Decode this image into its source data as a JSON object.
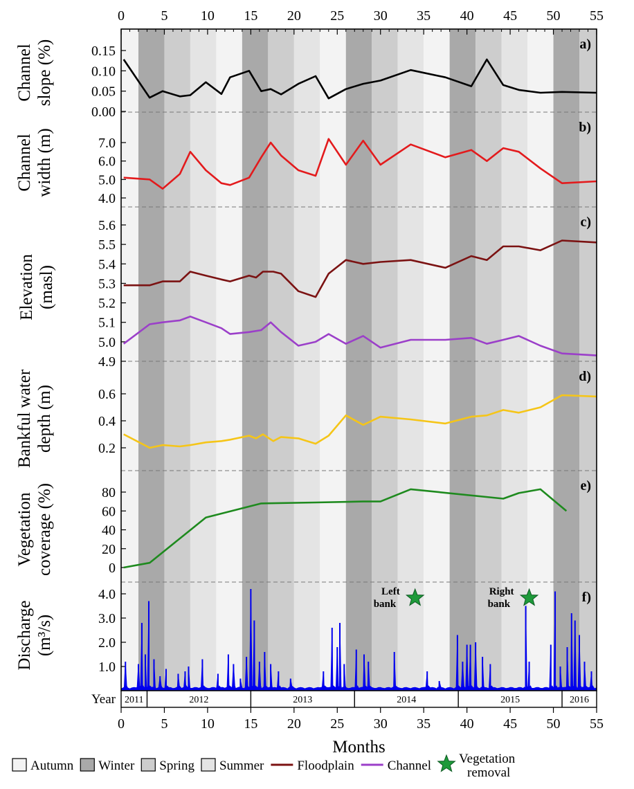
{
  "colors": {
    "autumn": "#f3f3f3",
    "winter": "#a9a9a9",
    "spring": "#cdcdcd",
    "summer": "#e4e4e4",
    "slope": "#000000",
    "width": "#e31a1c",
    "floodplain": "#7b1212",
    "channel": "#9b3fc9",
    "depth": "#f5c518",
    "vegetation": "#1e8a1e",
    "discharge": "#0000ee",
    "star": "#1e9a3a"
  },
  "icons": {
    "vegetation_removal": "star-icon"
  },
  "months_axis": {
    "label": "Months",
    "ticks": [
      "0",
      "5",
      "10",
      "15",
      "20",
      "25",
      "30",
      "35",
      "40",
      "45",
      "50",
      "55"
    ],
    "range": [
      0,
      55
    ]
  },
  "year_axis": {
    "title": "Year",
    "years": [
      {
        "label": "2011",
        "start": 0,
        "end": 3
      },
      {
        "label": "2012",
        "start": 3,
        "end": 15
      },
      {
        "label": "2013",
        "start": 15,
        "end": 27
      },
      {
        "label": "2014",
        "start": 27,
        "end": 39
      },
      {
        "label": "2015",
        "start": 39,
        "end": 51
      },
      {
        "label": "2016",
        "start": 51,
        "end": 55
      }
    ]
  },
  "seasons": [
    {
      "season": "autumn",
      "start": 0,
      "end": 2
    },
    {
      "season": "winter",
      "start": 2,
      "end": 5
    },
    {
      "season": "spring",
      "start": 5,
      "end": 8
    },
    {
      "season": "summer",
      "start": 8,
      "end": 11
    },
    {
      "season": "autumn",
      "start": 11,
      "end": 14
    },
    {
      "season": "winter",
      "start": 14,
      "end": 17
    },
    {
      "season": "spring",
      "start": 17,
      "end": 20
    },
    {
      "season": "summer",
      "start": 20,
      "end": 23
    },
    {
      "season": "autumn",
      "start": 23,
      "end": 26
    },
    {
      "season": "winter",
      "start": 26,
      "end": 29
    },
    {
      "season": "spring",
      "start": 29,
      "end": 32
    },
    {
      "season": "summer",
      "start": 32,
      "end": 35
    },
    {
      "season": "autumn",
      "start": 35,
      "end": 38
    },
    {
      "season": "winter",
      "start": 38,
      "end": 41
    },
    {
      "season": "spring",
      "start": 41,
      "end": 44
    },
    {
      "season": "summer",
      "start": 44,
      "end": 47
    },
    {
      "season": "autumn",
      "start": 47,
      "end": 50
    },
    {
      "season": "winter",
      "start": 50,
      "end": 53
    },
    {
      "season": "spring",
      "start": 53,
      "end": 55
    }
  ],
  "legend": {
    "items": [
      {
        "key": "autumn",
        "label": "Autumn",
        "kind": "box"
      },
      {
        "key": "winter",
        "label": "Winter",
        "kind": "box"
      },
      {
        "key": "spring",
        "label": "Spring",
        "kind": "box"
      },
      {
        "key": "summer",
        "label": "Summer",
        "kind": "box"
      },
      {
        "key": "floodplain",
        "label": "Floodplain",
        "kind": "line"
      },
      {
        "key": "channel",
        "label": "Channel",
        "kind": "line"
      },
      {
        "key": "star",
        "label": "Vegetation removal",
        "kind": "star"
      }
    ]
  },
  "annotations": [
    {
      "label": "Left bank",
      "month": 34
    },
    {
      "label": "Right bank",
      "month": 47.2
    }
  ],
  "chart_data": [
    {
      "type": "line",
      "panel": "a)",
      "ylabel": "Channel slope (%)",
      "yticks": [
        "0.00",
        "0.05",
        "0.10",
        "0.15"
      ],
      "ylim": [
        0,
        0.18
      ],
      "series": [
        {
          "color_key": "slope",
          "x": [
            0.3,
            3.3,
            4.8,
            6.8,
            8.0,
            9.8,
            11.6,
            12.6,
            14.8,
            16.2,
            17.3,
            18.5,
            20.5,
            22.5,
            24.0,
            26.0,
            28.0,
            30.0,
            33.5,
            37.5,
            40.5,
            42.3,
            44.2,
            46.0,
            48.5,
            51.0,
            55.0
          ],
          "y": [
            0.128,
            0.034,
            0.05,
            0.037,
            0.04,
            0.072,
            0.043,
            0.084,
            0.1,
            0.05,
            0.055,
            0.042,
            0.068,
            0.087,
            0.032,
            0.055,
            0.068,
            0.076,
            0.102,
            0.084,
            0.062,
            0.128,
            0.065,
            0.053,
            0.046,
            0.048,
            0.046
          ]
        }
      ]
    },
    {
      "type": "line",
      "panel": "b)",
      "ylabel": "Channel width (m)",
      "yticks": [
        "4.0",
        "5.0",
        "6.0",
        "7.0"
      ],
      "ylim": [
        3.5,
        7.5
      ],
      "series": [
        {
          "color_key": "width",
          "x": [
            0.3,
            3.3,
            4.8,
            6.8,
            8.0,
            9.8,
            11.6,
            12.6,
            14.8,
            16.2,
            17.3,
            18.5,
            20.5,
            22.5,
            24.0,
            26.0,
            28.0,
            30.0,
            33.5,
            37.5,
            40.5,
            42.3,
            44.2,
            46.0,
            48.5,
            51.0,
            55.0
          ],
          "y": [
            5.1,
            5.0,
            4.5,
            5.3,
            6.5,
            5.5,
            4.8,
            4.7,
            5.1,
            6.2,
            7.0,
            6.3,
            5.5,
            5.2,
            7.2,
            5.8,
            7.1,
            5.8,
            6.9,
            6.2,
            6.6,
            6.0,
            6.7,
            6.5,
            5.6,
            4.8,
            4.9
          ]
        }
      ]
    },
    {
      "type": "line",
      "panel": "c)",
      "ylabel": "Elevation (masl)",
      "yticks": [
        "4.9",
        "5.0",
        "5.1",
        "5.2",
        "5.3",
        "5.4",
        "5.5",
        "5.6"
      ],
      "ylim": [
        4.9,
        5.6
      ],
      "series": [
        {
          "name": "Floodplain",
          "color_key": "floodplain",
          "x": [
            0.3,
            3.3,
            4.8,
            6.8,
            8.0,
            9.8,
            11.6,
            12.6,
            14.8,
            15.6,
            16.4,
            17.6,
            18.5,
            20.5,
            22.5,
            24.0,
            26.0,
            28.0,
            30.0,
            33.5,
            37.5,
            40.5,
            42.3,
            44.2,
            46.0,
            48.5,
            51.0,
            55.0
          ],
          "y": [
            5.29,
            5.29,
            5.31,
            5.31,
            5.36,
            5.34,
            5.32,
            5.31,
            5.34,
            5.33,
            5.36,
            5.36,
            5.35,
            5.26,
            5.23,
            5.35,
            5.42,
            5.4,
            5.41,
            5.42,
            5.38,
            5.44,
            5.42,
            5.49,
            5.49,
            5.47,
            5.52,
            5.51
          ]
        },
        {
          "name": "Channel",
          "color_key": "channel",
          "x": [
            0.3,
            3.3,
            4.8,
            6.8,
            8.0,
            9.8,
            11.6,
            12.6,
            14.8,
            16.2,
            17.3,
            18.5,
            20.5,
            22.5,
            24.0,
            26.0,
            28.0,
            30.0,
            33.5,
            37.5,
            40.5,
            42.3,
            44.2,
            46.0,
            48.5,
            51.0,
            55.0
          ],
          "y": [
            4.99,
            5.09,
            5.1,
            5.11,
            5.13,
            5.1,
            5.07,
            5.04,
            5.05,
            5.06,
            5.1,
            5.05,
            4.98,
            5.0,
            5.04,
            4.99,
            5.03,
            4.97,
            5.01,
            5.01,
            5.02,
            4.99,
            5.01,
            5.03,
            4.98,
            4.94,
            4.93
          ]
        }
      ]
    },
    {
      "type": "line",
      "panel": "d)",
      "ylabel": "Bankful water depth (m)",
      "yticks": [
        "0.2",
        "0.4",
        "0.6"
      ],
      "ylim": [
        0.1,
        0.7
      ],
      "series": [
        {
          "color_key": "depth",
          "x": [
            0.3,
            3.3,
            4.8,
            6.8,
            8.0,
            9.8,
            11.6,
            12.6,
            14.8,
            15.6,
            16.4,
            17.6,
            18.5,
            20.5,
            22.5,
            24.0,
            26.0,
            28.0,
            30.0,
            33.5,
            37.5,
            40.5,
            42.3,
            44.2,
            46.0,
            48.5,
            51.0,
            55.0
          ],
          "y": [
            0.3,
            0.2,
            0.22,
            0.21,
            0.22,
            0.24,
            0.25,
            0.26,
            0.29,
            0.27,
            0.3,
            0.25,
            0.28,
            0.27,
            0.23,
            0.29,
            0.44,
            0.37,
            0.43,
            0.41,
            0.38,
            0.43,
            0.44,
            0.48,
            0.46,
            0.5,
            0.59,
            0.58
          ]
        }
      ]
    },
    {
      "type": "line",
      "panel": "e)",
      "ylabel": "Vegetation coverage (%)",
      "yticks": [
        "0",
        "20",
        "40",
        "60",
        "80"
      ],
      "ylim": [
        -10,
        100
      ],
      "series": [
        {
          "color_key": "vegetation",
          "x": [
            0.3,
            3.3,
            9.8,
            16.2,
            22.5,
            28.0,
            30.0,
            33.5,
            44.2,
            46.0,
            48.5,
            51.5
          ],
          "y": [
            0,
            5,
            53,
            68,
            69,
            70,
            70,
            83,
            73,
            79,
            83,
            60
          ]
        }
      ]
    },
    {
      "type": "area",
      "panel": "f)",
      "ylabel": "Discharge (m³/s)",
      "yticks": [
        "1.0",
        "2.0",
        "3.0",
        "4.0"
      ],
      "ylim": [
        0,
        4.6
      ],
      "series": [
        {
          "color_key": "discharge",
          "peaks": [
            [
              0.5,
              1.2
            ],
            [
              2.0,
              1.1
            ],
            [
              2.4,
              2.8
            ],
            [
              2.8,
              1.5
            ],
            [
              3.2,
              3.7
            ],
            [
              3.8,
              1.3
            ],
            [
              4.5,
              0.6
            ],
            [
              5.2,
              0.9
            ],
            [
              6.6,
              0.7
            ],
            [
              7.4,
              0.8
            ],
            [
              7.8,
              1.0
            ],
            [
              9.4,
              1.3
            ],
            [
              11.2,
              0.7
            ],
            [
              12.4,
              1.5
            ],
            [
              13.0,
              1.1
            ],
            [
              13.8,
              0.5
            ],
            [
              14.5,
              1.4
            ],
            [
              15.0,
              4.2
            ],
            [
              15.4,
              2.9
            ],
            [
              16.0,
              1.2
            ],
            [
              16.6,
              1.6
            ],
            [
              17.3,
              1.1
            ],
            [
              18.2,
              0.8
            ],
            [
              19.6,
              0.5
            ],
            [
              23.4,
              0.8
            ],
            [
              24.4,
              2.6
            ],
            [
              25.0,
              1.8
            ],
            [
              25.3,
              2.8
            ],
            [
              25.8,
              1.1
            ],
            [
              27.2,
              1.7
            ],
            [
              28.1,
              1.5
            ],
            [
              28.6,
              1.2
            ],
            [
              31.6,
              1.6
            ],
            [
              35.4,
              0.8
            ],
            [
              36.8,
              0.4
            ],
            [
              38.9,
              2.3
            ],
            [
              39.5,
              1.2
            ],
            [
              40.0,
              1.9
            ],
            [
              40.4,
              1.9
            ],
            [
              41.0,
              2.0
            ],
            [
              41.8,
              1.4
            ],
            [
              42.7,
              1.1
            ],
            [
              46.8,
              3.5
            ],
            [
              47.2,
              1.2
            ],
            [
              49.7,
              1.9
            ],
            [
              50.2,
              4.1
            ],
            [
              50.8,
              1.0
            ],
            [
              51.6,
              1.8
            ],
            [
              52.1,
              3.2
            ],
            [
              52.5,
              2.9
            ],
            [
              53.0,
              2.3
            ],
            [
              53.6,
              1.2
            ],
            [
              54.4,
              0.8
            ]
          ]
        }
      ]
    }
  ]
}
